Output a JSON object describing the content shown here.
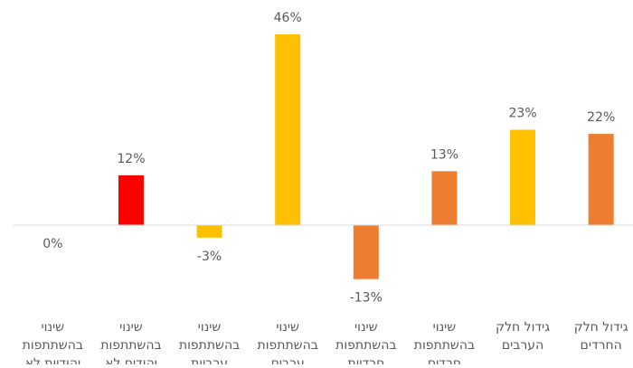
{
  "chart_data": {
    "type": "bar",
    "categories": [
      [
        "שינוי",
        "בהשתתפות",
        "יהודיות לא"
      ],
      [
        "שינוי",
        "בהשתתפות",
        "יהודים לא"
      ],
      [
        "שינוי",
        "בהשתתפות",
        "ערביות"
      ],
      [
        "שינוי",
        "בהשתתפות",
        "ערבים"
      ],
      [
        "שינוי",
        "בהשתתפות",
        "חרדיות"
      ],
      [
        "שינוי",
        "בהשתתפות",
        "חרדים"
      ],
      [
        "גידול חלק",
        "הערבים"
      ],
      [
        "גידול חלק",
        "החרדים"
      ]
    ],
    "values": [
      0,
      12,
      -3,
      46,
      -13,
      13,
      23,
      22
    ],
    "value_labels": [
      "0%",
      "12%",
      "-3%",
      "46%",
      "-13%",
      "13%",
      "23%",
      "22%"
    ],
    "colors": [
      "#ed7d31",
      "#ff0000",
      "#ffc000",
      "#ffc000",
      "#ed7d31",
      "#ed7d31",
      "#ffc000",
      "#ed7d31"
    ],
    "ylim": [
      -20,
      50
    ]
  }
}
